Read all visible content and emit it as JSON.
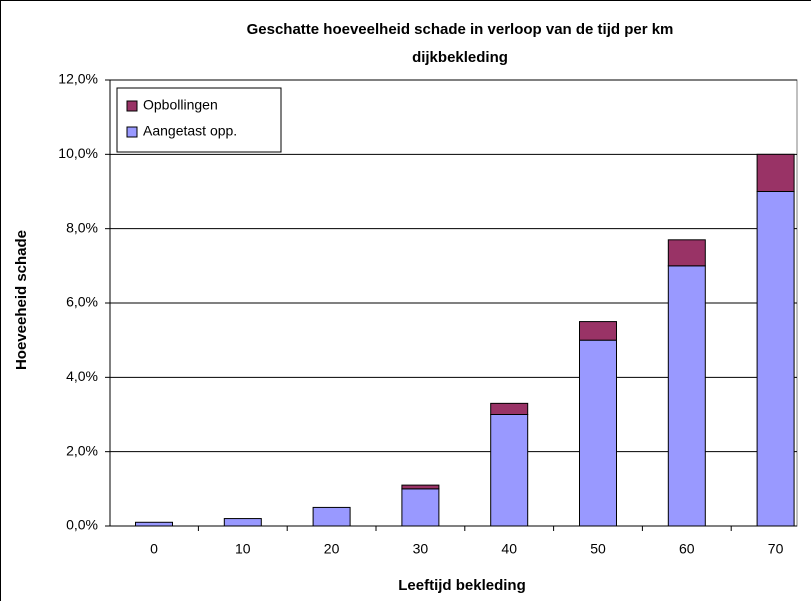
{
  "chart_data": {
    "type": "stacked_bar",
    "title": "Geschatte hoeveelheid schade in verloop van de tijd per km dijkbekleding",
    "x_label": "Leeftijd bekleding",
    "y_label": "Hoeveeheid schade",
    "categories": [
      "0",
      "10",
      "20",
      "30",
      "40",
      "50",
      "60",
      "70"
    ],
    "series": [
      {
        "name": "Aangetast opp.",
        "color": "#9999ff",
        "values": [
          0.1,
          0.2,
          0.5,
          1.0,
          3.0,
          5.0,
          7.0,
          9.0
        ]
      },
      {
        "name": "Opbollingen",
        "color": "#993366",
        "values": [
          0,
          0,
          0,
          0.1,
          0.3,
          0.5,
          0.7,
          1.0
        ]
      }
    ],
    "ylim": [
      0,
      12
    ],
    "yticks": [
      {
        "value": 0,
        "label": "0,0%"
      },
      {
        "value": 2,
        "label": "2,0%"
      },
      {
        "value": 4,
        "label": "4,0%"
      },
      {
        "value": 6,
        "label": "6,0%"
      },
      {
        "value": 8,
        "label": "8,0%"
      },
      {
        "value": 10,
        "label": "10,0%"
      },
      {
        "value": 12,
        "label": "12,0%"
      }
    ],
    "grid": true,
    "legend": "upper left"
  }
}
